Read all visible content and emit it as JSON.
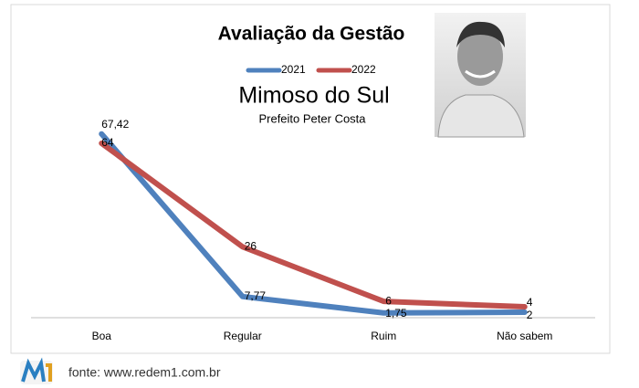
{
  "chart_data": {
    "type": "line",
    "title": "Avaliação da Gestão",
    "subtitle": "Mimoso do Sul",
    "caption": "Prefeito Peter Costa",
    "source": "fonte: www.redem1.com.br",
    "categories": [
      "Boa",
      "Regular",
      "Ruim",
      "Não sabem"
    ],
    "series": [
      {
        "name": "2021",
        "color": "#4f81bd",
        "values": [
          67.42,
          7.77,
          1.75,
          2
        ],
        "value_labels": [
          "67,42",
          "7,77",
          "1,75",
          "2"
        ]
      },
      {
        "name": "2022",
        "color": "#c0504d",
        "values": [
          64,
          26,
          6,
          4
        ]
      }
    ],
    "ylim": [
      0,
      70
    ],
    "legend": "top"
  }
}
